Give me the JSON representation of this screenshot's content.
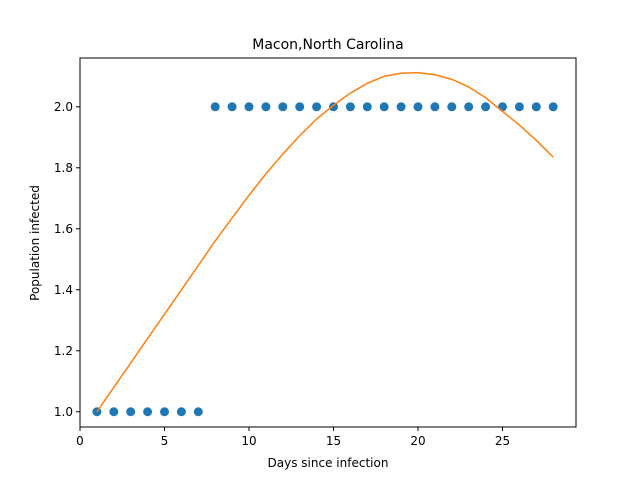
{
  "chart_data": {
    "type": "scatter",
    "title": "Macon,North Carolina",
    "xlabel": "Days since infection",
    "ylabel": "Population infected",
    "xlim": [
      0,
      29.35
    ],
    "ylim": [
      0.95,
      2.16
    ],
    "xticks": [
      0,
      5,
      10,
      15,
      20,
      25
    ],
    "yticks": [
      1.0,
      1.2,
      1.4,
      1.6,
      1.8,
      2.0
    ],
    "xtick_labels": [
      "0",
      "5",
      "10",
      "15",
      "20",
      "25"
    ],
    "ytick_labels": [
      "1.0",
      "1.2",
      "1.4",
      "1.6",
      "1.8",
      "2.0"
    ],
    "grid": false,
    "series": [
      {
        "kind": "scatter",
        "color": "#1f77b4",
        "x": [
          1,
          2,
          3,
          4,
          5,
          6,
          7,
          8,
          9,
          10,
          11,
          12,
          13,
          14,
          15,
          16,
          17,
          18,
          19,
          20,
          21,
          22,
          23,
          24,
          25,
          26,
          27,
          28
        ],
        "y": [
          1,
          1,
          1,
          1,
          1,
          1,
          1,
          2,
          2,
          2,
          2,
          2,
          2,
          2,
          2,
          2,
          2,
          2,
          2,
          2,
          2,
          2,
          2,
          2,
          2,
          2,
          2,
          2
        ]
      },
      {
        "kind": "line",
        "color": "#ff7f0e",
        "x": [
          1,
          2,
          3,
          4,
          5,
          6,
          7,
          8,
          9,
          10,
          11,
          12,
          13,
          14,
          15,
          16,
          17,
          18,
          19,
          20,
          21,
          22,
          23,
          24,
          25,
          26,
          27,
          28
        ],
        "y": [
          1.0,
          1.08,
          1.16,
          1.24,
          1.32,
          1.4,
          1.48,
          1.56,
          1.635,
          1.71,
          1.78,
          1.845,
          1.905,
          1.96,
          2.005,
          2.045,
          2.077,
          2.1,
          2.11,
          2.112,
          2.105,
          2.09,
          2.065,
          2.03,
          1.985,
          1.94,
          1.89,
          1.835
        ]
      }
    ]
  }
}
